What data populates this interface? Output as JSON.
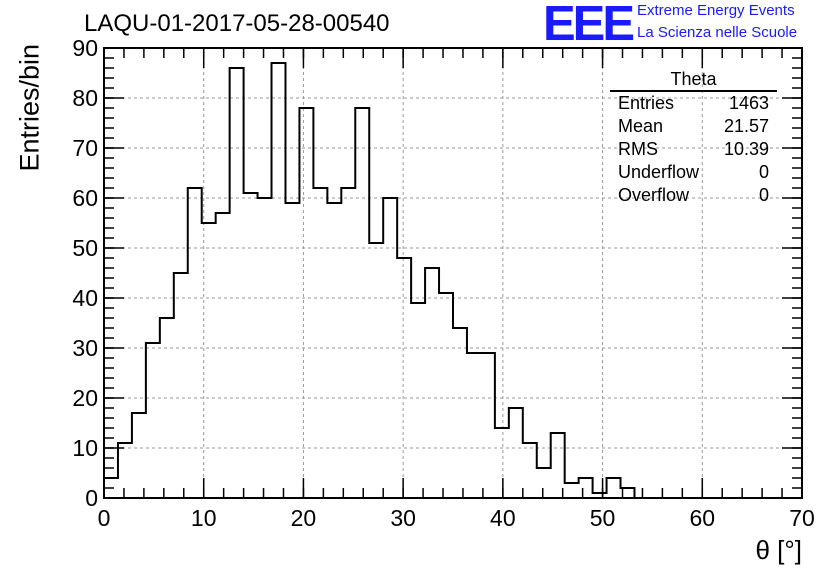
{
  "title": "LAQU-01-2017-05-28-00540",
  "branding": {
    "logo": "EEE",
    "line1": "Extreme Energy Events",
    "line2": "La Scienza nelle Scuole",
    "color": "#1a1aff"
  },
  "stats": {
    "title": "Theta",
    "rows": [
      {
        "label": "Entries",
        "value": "1463"
      },
      {
        "label": "Mean",
        "value": "21.57"
      },
      {
        "label": "RMS",
        "value": "10.39"
      },
      {
        "label": "Underflow",
        "value": "0"
      },
      {
        "label": "Overflow",
        "value": "0"
      }
    ]
  },
  "chart_data": {
    "type": "histogram",
    "xlabel": "θ [°]",
    "ylabel": "Entries/bin",
    "xlim": [
      0,
      70
    ],
    "ylim": [
      0,
      90
    ],
    "bin_width": 1.4,
    "xticks": [
      0,
      10,
      20,
      30,
      40,
      50,
      60,
      70
    ],
    "yticks": [
      0,
      10,
      20,
      30,
      40,
      50,
      60,
      70,
      80,
      90
    ],
    "grid": true,
    "values": [
      4,
      11,
      17,
      31,
      36,
      45,
      62,
      55,
      57,
      86,
      61,
      60,
      87,
      59,
      78,
      62,
      59,
      62,
      78,
      51,
      60,
      48,
      39,
      46,
      41,
      34,
      29,
      29,
      14,
      18,
      11,
      6,
      13,
      3,
      4,
      1,
      4,
      2,
      0,
      0,
      0,
      0,
      0,
      0,
      0,
      0,
      0,
      0,
      0,
      0
    ]
  }
}
